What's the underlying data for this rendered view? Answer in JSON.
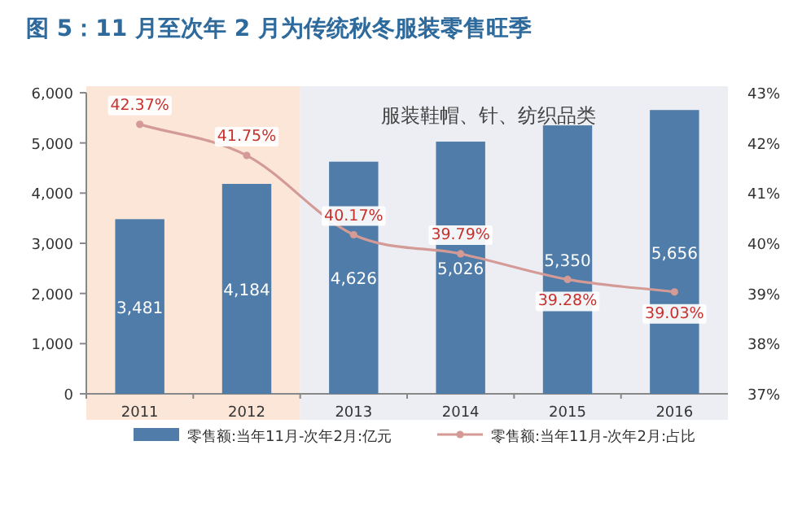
{
  "chart_data": {
    "type": "bar",
    "title": "图 5：11 月至次年 2 月为传统秋冬服装零售旺季",
    "annotations": [
      "服装鞋帽、针、纺织品类"
    ],
    "categories": [
      "2011",
      "2012",
      "2013",
      "2014",
      "2015",
      "2016"
    ],
    "series": [
      {
        "name": "零售额:当年11月-次年2月:亿元",
        "color": "#4f7ca8",
        "values": [
          3481,
          4184,
          4626,
          5026,
          5350,
          5656
        ],
        "value_labels": [
          "3,481",
          "4,184",
          "4,626",
          "5,026",
          "5,350",
          "5,656"
        ]
      },
      {
        "name": "零售额:当年11月-次年2月:占比",
        "type": "line",
        "axis": "y2",
        "color": "#d49a96",
        "marker": "circle",
        "values": [
          42.37,
          41.75,
          40.17,
          39.79,
          39.28,
          39.03
        ],
        "value_labels": [
          "42.37%",
          "41.75%",
          "40.17%",
          "39.79%",
          "39.28%",
          "39.03%"
        ]
      }
    ],
    "ylim": [
      0,
      6000
    ],
    "yticks": [
      0,
      {
        "value": 1000,
        "label": "1,000"
      },
      {
        "value": 2000,
        "label": "2,000"
      },
      {
        "value": 3000,
        "label": "3,000"
      },
      {
        "value": 4000,
        "label": "4,000"
      },
      {
        "value": 5000,
        "label": "5,000"
      },
      {
        "value": 6000,
        "label": "6,000"
      }
    ],
    "y2lim": [
      37,
      43
    ],
    "y2ticks": [
      {
        "value": 37,
        "label": "37%"
      },
      {
        "value": 38,
        "label": "38%"
      },
      {
        "value": 39,
        "label": "39%"
      },
      {
        "value": 40,
        "label": "40%"
      },
      {
        "value": 41,
        "label": "41%"
      },
      {
        "value": 42,
        "label": "42%"
      },
      {
        "value": 43,
        "label": "43%"
      }
    ],
    "bands": [
      {
        "axis": "x",
        "from": "2011",
        "to": "2012",
        "color": "#fbe6d8"
      },
      {
        "axis": "x",
        "from": "2013",
        "to": "2016",
        "color": "#eceef3"
      }
    ],
    "legend": "bottom"
  }
}
